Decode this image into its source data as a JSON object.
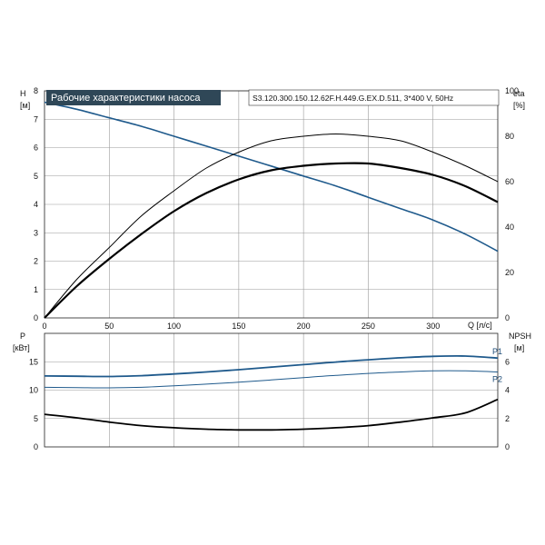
{
  "chart_data": [
    {
      "type": "line",
      "title": "Рабочие характеристики насоса",
      "subtitle": "S3.120.300.150.12.62F.H.449.G.EX.D.511, 3*400 V, 50Hz",
      "xlabel": "Q [л/с]",
      "xlim": [
        0,
        350
      ],
      "x_ticks": [
        "0",
        "50",
        "100",
        "150",
        "200",
        "250",
        "300"
      ],
      "ylabel_left": [
        "H",
        "[м]"
      ],
      "ylim_left": [
        0,
        8
      ],
      "y_ticks_left": [
        "0",
        "1",
        "2",
        "3",
        "4",
        "5",
        "6",
        "7",
        "8"
      ],
      "ylabel_right": [
        "eta",
        "[%]"
      ],
      "ylim_right": [
        0,
        100
      ],
      "y_ticks_right": [
        "0",
        "20",
        "40",
        "60",
        "80",
        "100"
      ],
      "grid": true,
      "series": [
        {
          "axis": "left",
          "color": "#1f5a8c",
          "x": [
            0,
            25,
            50,
            75,
            100,
            125,
            150,
            175,
            200,
            225,
            250,
            275,
            300,
            325,
            350
          ],
          "values": [
            7.6,
            7.35,
            7.05,
            6.75,
            6.4,
            6.05,
            5.7,
            5.35,
            5.0,
            4.65,
            4.25,
            3.85,
            3.45,
            2.95,
            2.35
          ]
        },
        {
          "axis": "right",
          "color": "#000000",
          "x": [
            0,
            25,
            50,
            75,
            100,
            125,
            150,
            175,
            200,
            225,
            250,
            275,
            300,
            325,
            350
          ],
          "values": [
            0,
            17,
            31,
            45,
            56,
            66,
            73,
            78,
            80,
            81,
            80,
            78,
            73,
            67,
            60
          ]
        },
        {
          "axis": "right",
          "color": "#000000",
          "x": [
            0,
            25,
            50,
            75,
            100,
            125,
            150,
            175,
            200,
            225,
            250,
            275,
            300,
            325,
            350
          ],
          "values": [
            0,
            14,
            26,
            37,
            47,
            55,
            61,
            65,
            67,
            68,
            68,
            66,
            63,
            58,
            51
          ]
        }
      ]
    },
    {
      "type": "line",
      "xlim": [
        0,
        350
      ],
      "ylabel_left": [
        "P",
        "[кВт]"
      ],
      "ylim_left": [
        0,
        20
      ],
      "y_ticks_left": [
        "0",
        "5",
        "10",
        "15"
      ],
      "ylabel_right": [
        "NPSH",
        "[м]"
      ],
      "ylim_right": [
        0,
        8
      ],
      "y_ticks_right": [
        "0",
        "2",
        "4",
        "6"
      ],
      "grid": true,
      "series": [
        {
          "name": "P1",
          "axis": "left",
          "color": "#1f5a8c",
          "x": [
            0,
            25,
            50,
            75,
            100,
            125,
            150,
            175,
            200,
            225,
            250,
            275,
            300,
            325,
            350
          ],
          "values": [
            12.5,
            12.45,
            12.4,
            12.55,
            12.85,
            13.2,
            13.6,
            14.05,
            14.5,
            14.95,
            15.35,
            15.7,
            15.95,
            16.0,
            15.65
          ]
        },
        {
          "name": "P2",
          "axis": "left",
          "color": "#1f5a8c",
          "x": [
            0,
            25,
            50,
            75,
            100,
            125,
            150,
            175,
            200,
            225,
            250,
            275,
            300,
            325,
            350
          ],
          "values": [
            10.5,
            10.45,
            10.4,
            10.5,
            10.75,
            11.05,
            11.4,
            11.8,
            12.2,
            12.6,
            12.95,
            13.2,
            13.4,
            13.4,
            13.2
          ]
        },
        {
          "axis": "right",
          "color": "#000000",
          "x": [
            0,
            25,
            50,
            75,
            100,
            125,
            150,
            175,
            200,
            225,
            250,
            275,
            300,
            325,
            350
          ],
          "values": [
            2.3,
            2.05,
            1.75,
            1.5,
            1.35,
            1.25,
            1.2,
            1.2,
            1.25,
            1.35,
            1.5,
            1.75,
            2.05,
            2.4,
            3.35
          ]
        }
      ]
    }
  ]
}
